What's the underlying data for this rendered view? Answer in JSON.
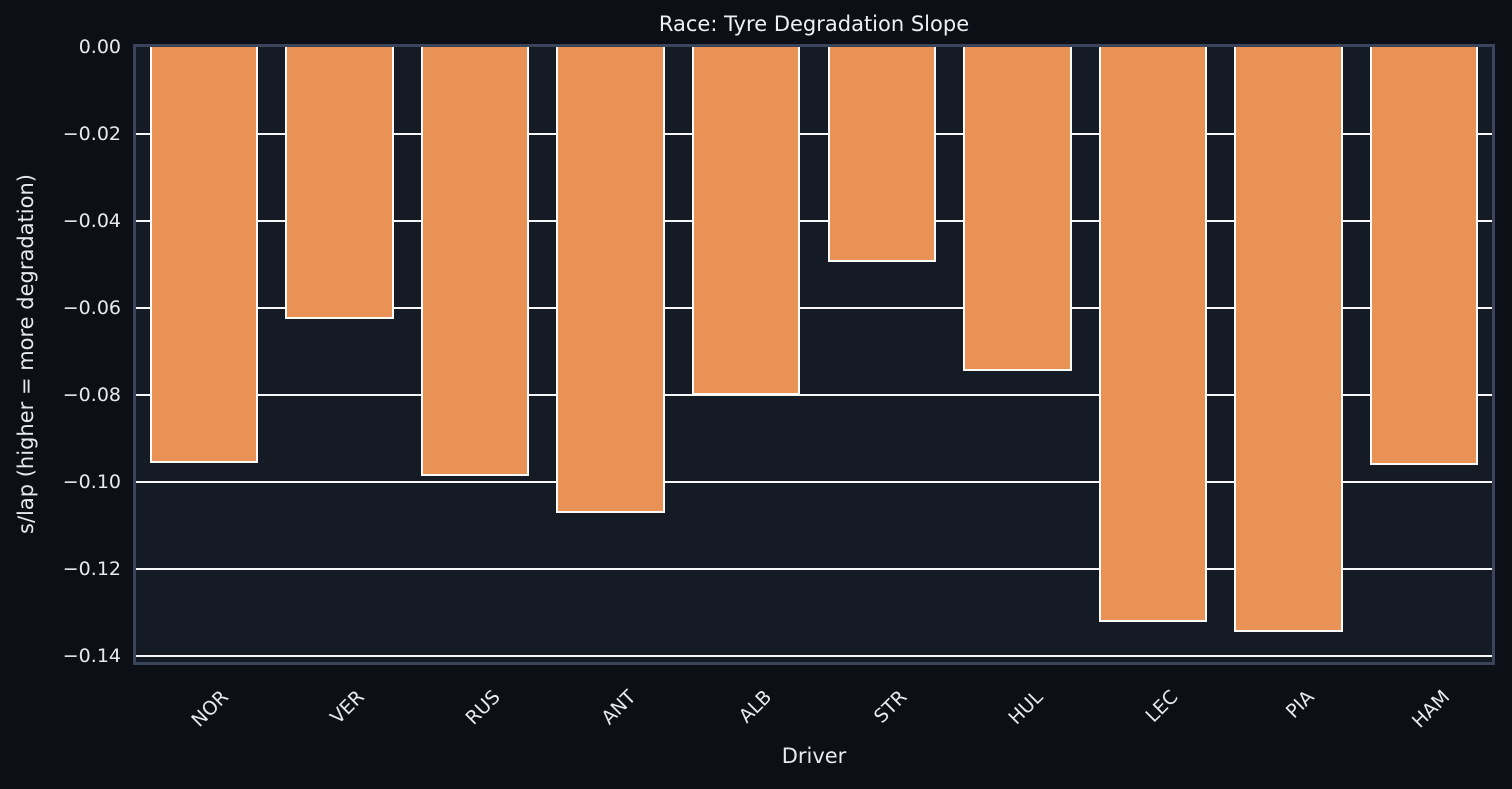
{
  "chart_data": {
    "type": "bar",
    "title": "Race: Tyre Degradation Slope",
    "xlabel": "Driver",
    "ylabel": "s/lap (higher = more degradation)",
    "categories": [
      "NOR",
      "VER",
      "RUS",
      "ANT",
      "ALB",
      "STR",
      "HUL",
      "LEC",
      "PIA",
      "HAM"
    ],
    "values": [
      -0.0955,
      -0.0625,
      -0.0985,
      -0.107,
      -0.08,
      -0.0495,
      -0.0745,
      -0.132,
      -0.1345,
      -0.096
    ],
    "ylim": [
      -0.1413,
      0
    ],
    "yticks": [
      0,
      -0.02,
      -0.04,
      -0.06,
      -0.08,
      -0.1,
      -0.12,
      -0.14
    ],
    "ytick_labels": [
      "0.00",
      "−0.02",
      "−0.04",
      "−0.06",
      "−0.08",
      "−0.10",
      "−0.12",
      "−0.14"
    ],
    "x_tick_rotation": 45,
    "grid": true,
    "legend": "none",
    "bar_width_fraction": 0.8,
    "colors": {
      "bar_fill": "#e89255",
      "bar_edge": "#fafafa",
      "axes_background": "#151b24",
      "figure_background": "#0c0f16",
      "spine": "#3a455c",
      "gridline": "#f7f7f7",
      "text": "#e6e9ef"
    }
  }
}
